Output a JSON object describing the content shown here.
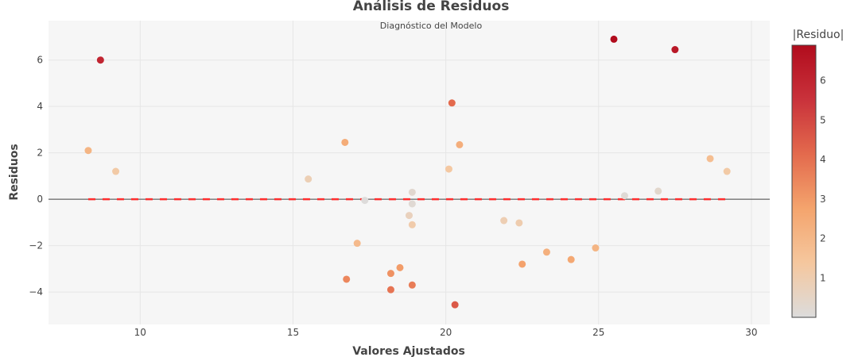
{
  "chart_data": {
    "type": "scatter",
    "title": "Análisis de Residuos",
    "subtitle": "Diagnóstico del Modelo",
    "xlabel": "Valores Ajustados",
    "ylabel": "Residuos",
    "xlim": [
      7,
      30.6
    ],
    "ylim": [
      -5.4,
      7.7
    ],
    "xticks": [
      10,
      15,
      20,
      25,
      30
    ],
    "yticks": [
      -4,
      -2,
      0,
      2,
      4,
      6
    ],
    "xtick_labels": [
      "10",
      "15",
      "20",
      "25",
      "30"
    ],
    "ytick_labels": [
      "−4",
      "−2",
      "0",
      "2",
      "4",
      "6"
    ],
    "grid": true,
    "plot_background": "#f6f6f6",
    "zero_line": {
      "y": 0,
      "color": "#444444"
    },
    "reference_line": {
      "y": 0,
      "x_range": [
        8.3,
        29.2
      ],
      "style": "dashed",
      "color": "#ff2e2e"
    },
    "colorbar": {
      "title": "|Residuo|",
      "range": [
        0,
        6.9
      ],
      "ticks": [
        1,
        2,
        3,
        4,
        5,
        6
      ],
      "tick_labels": [
        "1",
        "2",
        "3",
        "4",
        "5",
        "6"
      ],
      "colorscale": [
        "#dcdcdc",
        "#f5c79e",
        "#f4a46d",
        "#e36a4d",
        "#c9323b",
        "#b10c1d"
      ]
    },
    "points": [
      {
        "x": 8.3,
        "y": 2.1
      },
      {
        "x": 8.7,
        "y": 6.0
      },
      {
        "x": 9.2,
        "y": 1.2
      },
      {
        "x": 15.5,
        "y": 0.87
      },
      {
        "x": 16.7,
        "y": 2.45
      },
      {
        "x": 16.75,
        "y": -3.45
      },
      {
        "x": 17.1,
        "y": -1.9
      },
      {
        "x": 17.35,
        "y": -0.05
      },
      {
        "x": 18.2,
        "y": -3.2
      },
      {
        "x": 18.2,
        "y": -3.9
      },
      {
        "x": 18.5,
        "y": -2.95
      },
      {
        "x": 18.8,
        "y": -0.7
      },
      {
        "x": 18.9,
        "y": 0.3
      },
      {
        "x": 18.9,
        "y": -0.2
      },
      {
        "x": 18.9,
        "y": -1.1
      },
      {
        "x": 18.9,
        "y": -3.7
      },
      {
        "x": 20.1,
        "y": 1.3
      },
      {
        "x": 20.2,
        "y": 4.15
      },
      {
        "x": 20.3,
        "y": -4.55
      },
      {
        "x": 20.45,
        "y": 2.35
      },
      {
        "x": 21.9,
        "y": -0.92
      },
      {
        "x": 22.4,
        "y": -1.02
      },
      {
        "x": 22.5,
        "y": -2.8
      },
      {
        "x": 23.3,
        "y": -2.28
      },
      {
        "x": 24.1,
        "y": -2.6
      },
      {
        "x": 24.9,
        "y": -2.1
      },
      {
        "x": 25.5,
        "y": 6.9
      },
      {
        "x": 25.85,
        "y": 0.15
      },
      {
        "x": 26.95,
        "y": 0.35
      },
      {
        "x": 27.5,
        "y": 6.45
      },
      {
        "x": 28.65,
        "y": 1.75
      },
      {
        "x": 29.2,
        "y": 1.2
      }
    ]
  }
}
